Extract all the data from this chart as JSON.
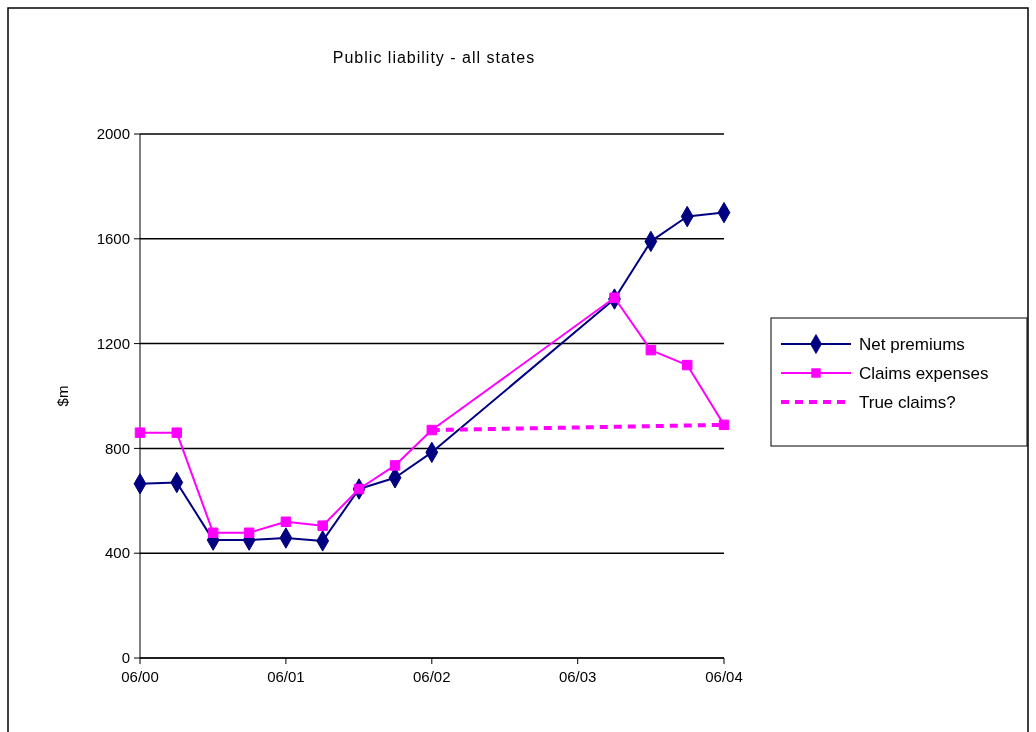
{
  "chart_data": {
    "type": "line",
    "title": "Public liability - all states",
    "ylabel": "$m",
    "xlim": [
      "2000-06",
      "2004-06"
    ],
    "xticks": [
      {
        "value": "2000-06",
        "label": "06/00"
      },
      {
        "value": "2001-06",
        "label": "06/01"
      },
      {
        "value": "2002-06",
        "label": "06/02"
      },
      {
        "value": "2003-06",
        "label": "06/03"
      },
      {
        "value": "2004-06",
        "label": "06/04"
      }
    ],
    "ylim": [
      0,
      2000
    ],
    "yticks": [
      0,
      400,
      800,
      1200,
      1600,
      2000
    ],
    "grid": "y",
    "legend": "right",
    "series": [
      {
        "name": "Net premiums",
        "color": "#000080",
        "marker": "diamond",
        "line_style": "solid",
        "x": [
          "2000-06",
          "2000-09",
          "2000-12",
          "2001-03",
          "2001-06",
          "2001-09",
          "2001-12",
          "2002-03",
          "2002-06",
          "2003-09",
          "2003-12",
          "2004-03",
          "2004-06"
        ],
        "values": [
          665,
          670,
          450,
          450,
          458,
          447,
          645,
          688,
          785,
          1370,
          1590,
          1685,
          1700
        ]
      },
      {
        "name": "Claims expenses",
        "color": "#ff00ff",
        "marker": "square",
        "line_style": "solid",
        "x": [
          "2000-06",
          "2000-09",
          "2000-12",
          "2001-03",
          "2001-06",
          "2001-09",
          "2001-12",
          "2002-03",
          "2002-06",
          "2003-09",
          "2003-12",
          "2004-03",
          "2004-06"
        ],
        "values": [
          860,
          860,
          478,
          478,
          520,
          505,
          645,
          735,
          870,
          1375,
          1175,
          1118,
          890
        ]
      },
      {
        "name": "True claims?",
        "color": "#ff00ff",
        "marker": "none",
        "line_style": "dashed",
        "x": [
          "2002-06",
          "2004-06"
        ],
        "values": [
          870,
          890
        ]
      }
    ]
  }
}
